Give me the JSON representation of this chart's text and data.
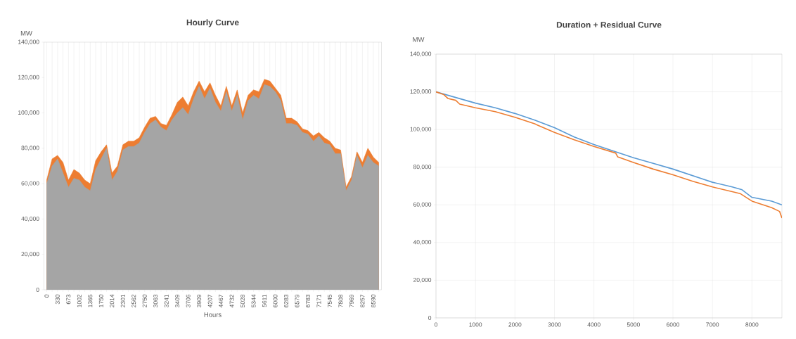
{
  "chart_data": [
    {
      "type": "area",
      "title": "Hourly Curve",
      "ylabel": "MW",
      "xlabel": "Hours",
      "categories": [
        "0",
        null,
        "330",
        null,
        "673",
        null,
        "1002",
        null,
        "1365",
        null,
        "1750",
        null,
        "2014",
        null,
        "2301",
        null,
        "2562",
        null,
        "2750",
        null,
        "3063",
        null,
        "3241",
        null,
        "3409",
        null,
        "3706",
        null,
        "3909",
        null,
        "4207",
        null,
        "4467",
        null,
        "4732",
        null,
        "5028",
        null,
        "5344",
        null,
        "5611",
        null,
        "6000",
        null,
        "6283",
        null,
        "6579",
        null,
        "6783",
        null,
        "7171",
        null,
        "7545",
        null,
        "7808",
        null,
        "7969",
        null,
        "8257",
        null,
        "8590",
        null
      ],
      "series": [
        {
          "color": "#ed7d31",
          "values": [
            62000,
            74000,
            76000,
            72000,
            62000,
            68000,
            66000,
            62000,
            60000,
            73000,
            78000,
            82000,
            66000,
            70000,
            82000,
            84000,
            84000,
            86000,
            92000,
            97000,
            98000,
            94000,
            93000,
            99000,
            106000,
            109000,
            104000,
            112000,
            118000,
            112000,
            117000,
            110000,
            104000,
            115000,
            104000,
            113000,
            100000,
            110000,
            113000,
            112000,
            119000,
            118000,
            114000,
            110000,
            97000,
            97000,
            95000,
            91000,
            90000,
            87000,
            89000,
            86000,
            84000,
            80000,
            79000,
            58000,
            64000,
            78000,
            72000,
            80000,
            75000,
            72000
          ]
        },
        {
          "color": "#a5a5a5",
          "values": [
            60000,
            70000,
            74000,
            66000,
            58000,
            63000,
            62000,
            58000,
            56000,
            68000,
            74000,
            80000,
            62000,
            67000,
            79000,
            81000,
            81000,
            83000,
            89000,
            94000,
            96000,
            92000,
            90000,
            96000,
            100000,
            103000,
            99000,
            108000,
            115000,
            108000,
            114000,
            106000,
            101000,
            112000,
            101000,
            110000,
            96000,
            107000,
            110000,
            108000,
            116000,
            115000,
            112000,
            107000,
            94000,
            94000,
            93000,
            89000,
            88000,
            84000,
            87000,
            83000,
            82000,
            77000,
            77000,
            56000,
            62000,
            76000,
            69000,
            76000,
            72000,
            70000
          ]
        }
      ],
      "ylim": [
        0,
        140000
      ],
      "yticks": [
        {
          "value": 0,
          "label": "0"
        },
        {
          "value": 20000,
          "label": "20,000"
        },
        {
          "value": 40000,
          "label": "40,000"
        },
        {
          "value": 60000,
          "label": "60,000"
        },
        {
          "value": 80000,
          "label": "80,000"
        },
        {
          "value": 100000,
          "label": "100,000"
        },
        {
          "value": 120000,
          "label": "120,000"
        },
        {
          "value": 140000,
          "label": "140,000"
        }
      ],
      "grid": "x"
    },
    {
      "type": "line",
      "title": "Duration + Residual Curve",
      "ylabel": "MW",
      "series": [
        {
          "color": "#5b9bd5",
          "x": [
            0,
            500,
            1000,
            1500,
            2000,
            2500,
            3000,
            3500,
            4000,
            4500,
            5000,
            5500,
            6000,
            6500,
            7000,
            7500,
            7750,
            8000,
            8500,
            8760
          ],
          "values": [
            120000,
            117000,
            114000,
            111500,
            108500,
            105000,
            101000,
            96000,
            92000,
            88500,
            85000,
            82000,
            79000,
            75500,
            72000,
            69500,
            68000,
            64000,
            62000,
            60000
          ]
        },
        {
          "color": "#ed7d31",
          "x": [
            0,
            200,
            300,
            500,
            600,
            1000,
            1500,
            2000,
            2500,
            3000,
            3500,
            4000,
            4550,
            4600,
            5000,
            5500,
            6000,
            6500,
            7000,
            7500,
            7700,
            8000,
            8500,
            8700,
            8760
          ],
          "values": [
            120000,
            118500,
            116500,
            115500,
            113500,
            111500,
            109500,
            106500,
            103000,
            98500,
            94500,
            91000,
            87500,
            85500,
            82500,
            79000,
            76000,
            72500,
            69500,
            67000,
            66000,
            62000,
            58500,
            56500,
            53000
          ]
        }
      ],
      "xlim": [
        0,
        8760
      ],
      "xticks": [
        0,
        1000,
        2000,
        3000,
        4000,
        5000,
        6000,
        7000,
        8000
      ],
      "ylim": [
        0,
        140000
      ],
      "yticks": [
        {
          "value": 0,
          "label": "0"
        },
        {
          "value": 20000,
          "label": "20,000"
        },
        {
          "value": 40000,
          "label": "40,000"
        },
        {
          "value": 60000,
          "label": "60,000"
        },
        {
          "value": 80000,
          "label": "80,000"
        },
        {
          "value": 100000,
          "label": "100,000"
        },
        {
          "value": 120000,
          "label": "120,000"
        },
        {
          "value": 140000,
          "label": "140,000"
        }
      ],
      "grid": true
    }
  ]
}
